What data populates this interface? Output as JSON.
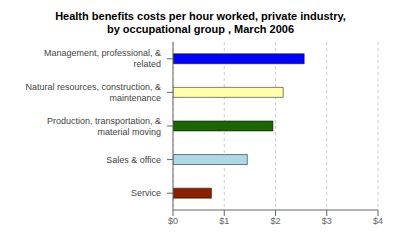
{
  "chart_data": {
    "type": "bar",
    "title": "Health benefits costs per hour worked, private industry,\nby occupational group , March 2006",
    "orientation": "horizontal",
    "categories": [
      "Management, professional, & related",
      "Natural resources, construction, &\nmaintenance",
      "Production, transportation, & material moving",
      "Sales & office",
      "Service"
    ],
    "values": [
      2.56,
      2.15,
      1.95,
      1.45,
      0.75
    ],
    "colors": [
      "#0000ff",
      "#ffffaa",
      "#1a6600",
      "#add8e6",
      "#8b2000"
    ],
    "xlim": [
      0,
      4
    ],
    "xticks": [
      {
        "value": 0,
        "label": "$0"
      },
      {
        "value": 1,
        "label": "$1"
      },
      {
        "value": 2,
        "label": "$2"
      },
      {
        "value": 3,
        "label": "$3"
      },
      {
        "value": 4,
        "label": "$4"
      }
    ],
    "grid": true
  }
}
